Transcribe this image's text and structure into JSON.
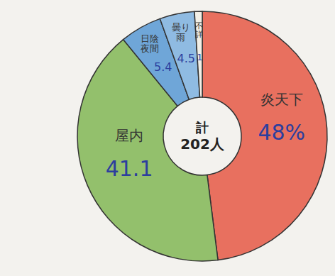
{
  "chart_data": {
    "type": "pie",
    "categories": [
      "炎天下",
      "屋内",
      "日陰夜間",
      "曇り雨",
      "不詳"
    ],
    "values": [
      48,
      41.1,
      5.4,
      4.5,
      1
    ],
    "value_labels": [
      "48%",
      "41.1",
      "5.4",
      "4.5",
      "1"
    ],
    "colors": [
      "#e8705f",
      "#93c06c",
      "#6fa6d8",
      "#8fbbe2",
      "#f2efe6"
    ],
    "data_labels": true,
    "annotations": [
      "計",
      "202人"
    ]
  }
}
